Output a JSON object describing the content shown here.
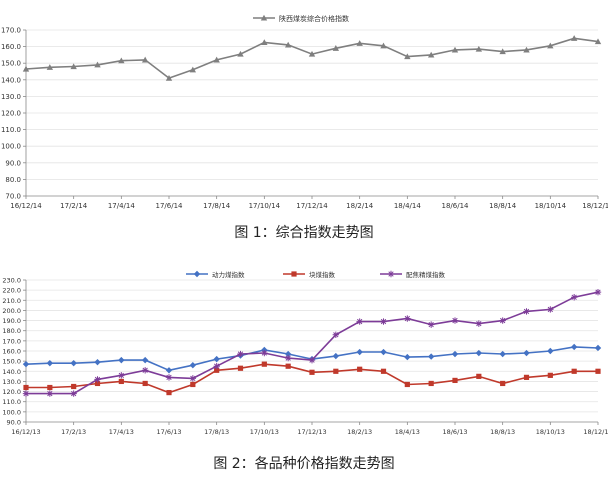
{
  "chart_data": [
    {
      "type": "line",
      "title": "",
      "xlabel": "",
      "ylabel": "",
      "x": [
        "16/12/14",
        "17/1/14",
        "17/2/14",
        "17/3/14",
        "17/4/14",
        "17/5/14",
        "17/6/14",
        "17/7/14",
        "17/8/14",
        "17/9/14",
        "17/10/14",
        "17/11/14",
        "17/12/14",
        "18/1/14",
        "18/2/14",
        "18/3/14",
        "18/4/14",
        "18/5/14",
        "18/6/14",
        "18/7/14",
        "18/8/14",
        "18/9/14",
        "18/10/14",
        "18/11/14",
        "18/12/14"
      ],
      "xtick_labels": [
        "16/12/14",
        "17/2/14",
        "17/4/14",
        "17/6/14",
        "17/8/14",
        "17/10/14",
        "17/12/14",
        "18/2/14",
        "18/4/14",
        "18/6/14",
        "18/8/14",
        "18/10/14",
        "18/12/14"
      ],
      "ylim": [
        70,
        170
      ],
      "yticks": [
        "70.0",
        "80.0",
        "90.0",
        "100.0",
        "110.0",
        "120.0",
        "130.0",
        "140.0",
        "150.0",
        "160.0",
        "170.0"
      ],
      "legend_position": "top",
      "series": [
        {
          "name": "陕西煤炭综合价格指数",
          "color": "#7f7f7f",
          "marker": "triangle",
          "values": [
            146.5,
            147.5,
            148,
            149,
            151.5,
            152,
            141,
            146,
            152,
            155.5,
            162.5,
            161,
            155.5,
            159,
            162,
            160.5,
            154,
            155,
            158,
            158.5,
            157,
            158,
            160.5,
            165,
            163
          ]
        }
      ]
    },
    {
      "type": "line",
      "title": "",
      "xlabel": "",
      "ylabel": "",
      "x": [
        "16/12/13",
        "17/1/13",
        "17/2/13",
        "17/3/13",
        "17/4/13",
        "17/5/13",
        "17/6/13",
        "17/7/13",
        "17/8/13",
        "17/9/13",
        "17/10/13",
        "17/11/13",
        "17/12/13",
        "18/1/13",
        "18/2/13",
        "18/3/13",
        "18/4/13",
        "18/5/13",
        "18/6/13",
        "18/7/13",
        "18/8/13",
        "18/9/13",
        "18/10/13",
        "18/11/13",
        "18/12/13"
      ],
      "xtick_labels": [
        "16/12/13",
        "17/2/13",
        "17/4/13",
        "17/6/13",
        "17/8/13",
        "17/10/13",
        "17/12/13",
        "18/2/13",
        "18/4/13",
        "18/6/13",
        "18/8/13",
        "18/10/13",
        "18/12/13"
      ],
      "ylim": [
        90,
        230
      ],
      "yticks": [
        "90.0",
        "100.0",
        "110.0",
        "120.0",
        "130.0",
        "140.0",
        "150.0",
        "160.0",
        "170.0",
        "180.0",
        "190.0",
        "200.0",
        "210.0",
        "220.0",
        "230.0"
      ],
      "legend_position": "top",
      "series": [
        {
          "name": "动力煤指数",
          "color": "#4472c4",
          "marker": "diamond",
          "values": [
            147,
            148,
            148,
            149,
            151,
            151,
            141,
            146,
            152,
            155.5,
            161,
            157,
            152,
            155,
            159,
            159,
            154,
            154.5,
            157,
            158,
            157,
            158,
            160,
            164,
            163
          ]
        },
        {
          "name": "块煤指数",
          "color": "#c0392b",
          "marker": "square",
          "values": [
            124,
            124,
            125,
            128,
            130,
            128,
            119,
            127,
            141,
            143,
            147,
            145,
            139,
            140,
            142,
            140,
            127,
            128,
            131,
            135,
            128,
            134,
            136,
            140,
            140
          ]
        },
        {
          "name": "配焦精煤指数",
          "color": "#7d3c98",
          "marker": "star",
          "values": [
            118,
            118,
            118,
            132,
            136,
            141,
            134,
            133,
            145,
            157,
            158,
            153,
            151,
            176,
            189,
            189,
            192,
            186,
            190,
            187,
            190,
            199,
            201,
            213,
            218
          ]
        }
      ]
    }
  ],
  "captions": {
    "figure1": "图 1：综合指数走势图",
    "figure2": "图 2：各品种价格指数走势图"
  }
}
